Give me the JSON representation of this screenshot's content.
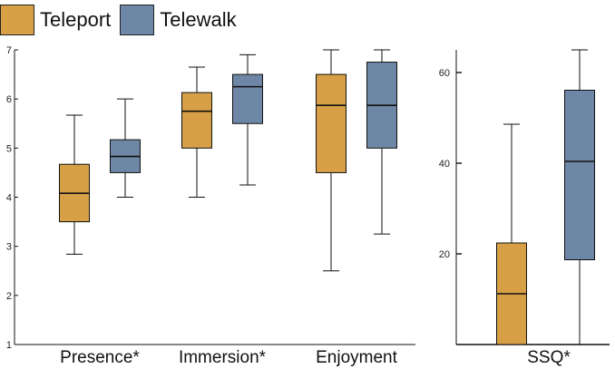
{
  "colors": {
    "teleport": "#D7A047",
    "telewalk": "#6F87A6",
    "axis": "#111111"
  },
  "legend": [
    {
      "name": "Teleport",
      "color": "#D7A047"
    },
    {
      "name": "Telewalk",
      "color": "#6F87A6"
    }
  ],
  "chart_data": [
    {
      "type": "box",
      "title": "",
      "xlabel": "",
      "ylabel": "",
      "ylim": [
        1,
        7
      ],
      "yticks": [
        "1",
        "2",
        "3",
        "4",
        "5",
        "6",
        "7"
      ],
      "categories": [
        "Presence*",
        "Immersion*",
        "Enjoyment"
      ],
      "series": [
        {
          "name": "Teleport",
          "boxes": [
            {
              "min": 2.84,
              "q1": 3.5,
              "median": 4.08,
              "q3": 4.67,
              "max": 5.67
            },
            {
              "min": 4.0,
              "q1": 5.0,
              "median": 5.75,
              "q3": 6.13,
              "max": 6.65
            },
            {
              "min": 2.5,
              "q1": 4.5,
              "median": 5.87,
              "q3": 6.5,
              "max": 7.0
            }
          ]
        },
        {
          "name": "Telewalk",
          "boxes": [
            {
              "min": 4.0,
              "q1": 4.5,
              "median": 4.83,
              "q3": 5.17,
              "max": 6.0
            },
            {
              "min": 4.25,
              "q1": 5.5,
              "median": 6.25,
              "q3": 6.5,
              "max": 6.9
            },
            {
              "min": 3.25,
              "q1": 5.0,
              "median": 5.87,
              "q3": 6.75,
              "max": 7.0
            }
          ]
        }
      ]
    },
    {
      "type": "box",
      "title": "",
      "xlabel": "",
      "ylabel": "",
      "ylim": [
        0,
        65
      ],
      "yticks": [
        "20",
        "40",
        "60"
      ],
      "yticks_values": [
        20,
        40,
        60
      ],
      "categories": [
        "SSQ*"
      ],
      "series": [
        {
          "name": "Teleport",
          "boxes": [
            {
              "min": 0,
              "q1": 0,
              "median": 11.2,
              "q3": 22.4,
              "max": 48.6
            }
          ]
        },
        {
          "name": "Telewalk",
          "boxes": [
            {
              "min": 0,
              "q1": 18.7,
              "median": 40.4,
              "q3": 56.1,
              "max": 65.0
            }
          ]
        }
      ]
    }
  ]
}
